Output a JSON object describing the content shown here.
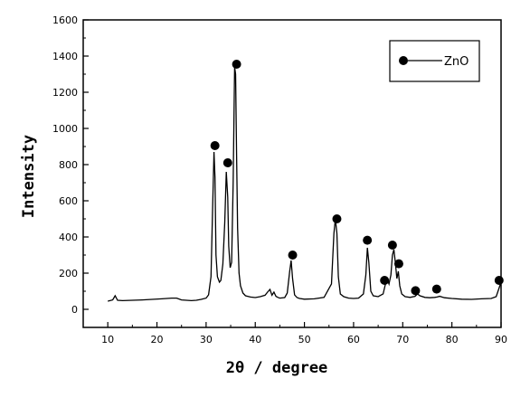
{
  "chart_data": {
    "type": "line",
    "xlabel": "2θ / degree",
    "ylabel": "Intensity",
    "xlim": [
      5,
      90
    ],
    "ylim": [
      -100,
      1600
    ],
    "x_ticks": [
      10,
      20,
      30,
      40,
      50,
      60,
      70,
      80,
      90
    ],
    "y_ticks": [
      0,
      200,
      400,
      600,
      800,
      1000,
      1200,
      1400,
      1600
    ],
    "grid": false,
    "legend_position": "top-right",
    "legend": [
      "ZnO"
    ],
    "series": [
      {
        "name": "ZnO",
        "x": [
          10,
          11,
          11.5,
          12,
          13,
          15,
          17,
          19,
          21,
          22,
          23,
          24,
          25,
          26,
          27,
          28,
          29,
          30,
          30.5,
          31,
          31.3,
          31.6,
          31.8,
          32,
          32.3,
          32.7,
          33,
          33.4,
          33.8,
          34.1,
          34.4,
          34.6,
          34.9,
          35.2,
          35.5,
          35.8,
          36.0,
          36.2,
          36.4,
          36.7,
          37.0,
          37.5,
          38,
          39,
          40,
          41,
          42,
          42.5,
          43,
          43.4,
          43.8,
          44.2,
          44.6,
          45,
          46,
          46.5,
          47,
          47.3,
          47.6,
          48,
          48.5,
          49,
          50,
          52,
          54,
          55.5,
          56,
          56.3,
          56.6,
          56.9,
          57.3,
          58,
          59,
          60,
          61,
          62,
          62.5,
          62.8,
          63.1,
          63.5,
          64,
          65,
          66,
          66.4,
          66.8,
          67.2,
          67.6,
          67.9,
          68.2,
          68.5,
          68.8,
          69.1,
          69.4,
          69.8,
          70.5,
          71.5,
          72.5,
          73,
          73.5,
          74.5,
          75.5,
          76.5,
          77,
          77.5,
          78.5,
          80,
          82,
          84,
          86,
          88,
          89,
          89.5,
          90
        ],
        "y": [
          45,
          52,
          75,
          50,
          48,
          50,
          52,
          55,
          58,
          60,
          62,
          62,
          52,
          50,
          48,
          50,
          55,
          62,
          80,
          180,
          520,
          870,
          730,
          300,
          180,
          150,
          160,
          250,
          480,
          760,
          620,
          350,
          230,
          260,
          700,
          1340,
          1300,
          850,
          450,
          200,
          130,
          90,
          75,
          68,
          65,
          70,
          78,
          95,
          110,
          78,
          95,
          72,
          66,
          62,
          65,
          90,
          210,
          270,
          170,
          80,
          65,
          60,
          56,
          58,
          66,
          140,
          420,
          500,
          420,
          180,
          85,
          70,
          62,
          60,
          62,
          85,
          190,
          340,
          260,
          100,
          75,
          70,
          85,
          130,
          170,
          140,
          190,
          300,
          330,
          260,
          170,
          210,
          130,
          85,
          70,
          66,
          72,
          85,
          75,
          66,
          64,
          66,
          68,
          72,
          64,
          60,
          56,
          55,
          58,
          60,
          70,
          110,
          150
        ]
      }
    ],
    "annotations": [
      {
        "label": "ZnO",
        "x": 31.8,
        "y": 905
      },
      {
        "label": "ZnO",
        "x": 34.4,
        "y": 810
      },
      {
        "label": "ZnO",
        "x": 36.2,
        "y": 1355
      },
      {
        "label": "ZnO",
        "x": 47.6,
        "y": 300
      },
      {
        "label": "ZnO",
        "x": 56.6,
        "y": 500
      },
      {
        "label": "ZnO",
        "x": 62.8,
        "y": 382
      },
      {
        "label": "ZnO",
        "x": 66.3,
        "y": 160
      },
      {
        "label": "ZnO",
        "x": 67.9,
        "y": 355
      },
      {
        "label": "ZnO",
        "x": 69.2,
        "y": 252
      },
      {
        "label": "ZnO",
        "x": 72.6,
        "y": 103
      },
      {
        "label": "ZnO",
        "x": 76.9,
        "y": 112
      },
      {
        "label": "ZnO",
        "x": 89.6,
        "y": 160
      }
    ]
  }
}
